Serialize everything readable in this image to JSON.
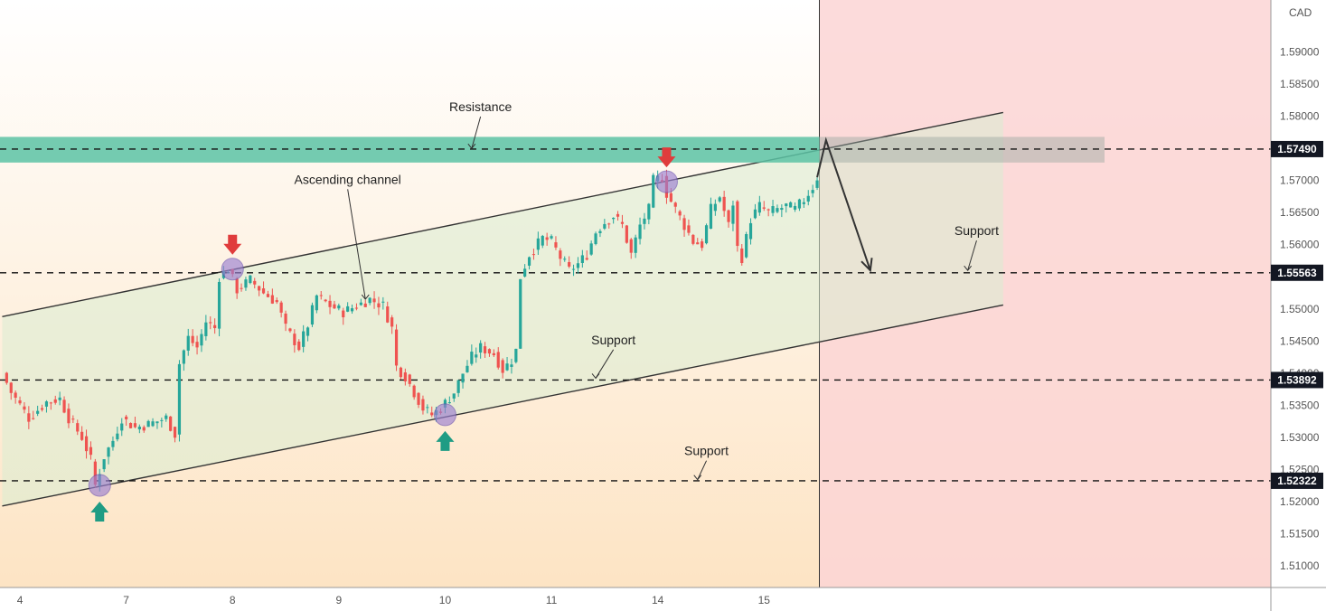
{
  "chart_data": {
    "type": "candlestick",
    "title": "",
    "currency_label": "CAD",
    "colors": {
      "up": "#26a69a",
      "down": "#ef5350",
      "resistance_zone": "#5cc3a4",
      "channel_fill": "#d9ecd2",
      "forecast_bg": "#fbd5d5",
      "price_tag_bg": "#131722",
      "bg_top": "#ffffff",
      "bg_bottom": "#fde4c4",
      "marker_down": "#e03c3c",
      "marker_up": "#1f9c84",
      "pivot_circle": "#9b7fd1"
    },
    "ylim": [
      1.508,
      1.597
    ],
    "y_ticks": [
      "1.59000",
      "1.58500",
      "1.58000",
      "1.57000",
      "1.56500",
      "1.56000",
      "1.55000",
      "1.54500",
      "1.54000",
      "1.53500",
      "1.53000",
      "1.52500",
      "1.52000",
      "1.51500",
      "1.51000"
    ],
    "x_ticks": [
      "4",
      "7",
      "8",
      "9",
      "10",
      "11",
      "14",
      "15"
    ],
    "x_tick_index": [
      4,
      28,
      52,
      76,
      100,
      124,
      148,
      172
    ],
    "n_slots": 226,
    "last_candle_index": 184,
    "forecast_start_index": 185,
    "ohlc_anchors": [
      [
        0,
        1.54
      ],
      [
        2,
        1.537
      ],
      [
        6,
        1.533
      ],
      [
        10,
        1.5355
      ],
      [
        13,
        1.536
      ],
      [
        15,
        1.533
      ],
      [
        18,
        1.53
      ],
      [
        20,
        1.5265
      ],
      [
        21,
        1.5225
      ],
      [
        23,
        1.527
      ],
      [
        25,
        1.5295
      ],
      [
        27,
        1.533
      ],
      [
        30,
        1.5315
      ],
      [
        33,
        1.532
      ],
      [
        37,
        1.533
      ],
      [
        39,
        1.5305
      ],
      [
        40,
        1.5415
      ],
      [
        42,
        1.5455
      ],
      [
        44,
        1.544
      ],
      [
        46,
        1.548
      ],
      [
        48,
        1.547
      ],
      [
        49,
        1.555
      ],
      [
        51,
        1.5562
      ],
      [
        53,
        1.553
      ],
      [
        56,
        1.5545
      ],
      [
        59,
        1.5525
      ],
      [
        62,
        1.551
      ],
      [
        64,
        1.547
      ],
      [
        67,
        1.544
      ],
      [
        69,
        1.5475
      ],
      [
        71,
        1.552
      ],
      [
        74,
        1.5505
      ],
      [
        77,
        1.5495
      ],
      [
        80,
        1.5505
      ],
      [
        83,
        1.5515
      ],
      [
        86,
        1.5505
      ],
      [
        88,
        1.547
      ],
      [
        89,
        1.541
      ],
      [
        91,
        1.5395
      ],
      [
        93,
        1.537
      ],
      [
        95,
        1.5345
      ],
      [
        97,
        1.5335
      ],
      [
        99,
        1.5345
      ],
      [
        102,
        1.537
      ],
      [
        104,
        1.54
      ],
      [
        106,
        1.5425
      ],
      [
        108,
        1.544
      ],
      [
        111,
        1.543
      ],
      [
        113,
        1.5405
      ],
      [
        115,
        1.542
      ],
      [
        116,
        1.5435
      ],
      [
        117,
        1.555
      ],
      [
        119,
        1.5585
      ],
      [
        122,
        1.561
      ],
      [
        124,
        1.5605
      ],
      [
        126,
        1.558
      ],
      [
        128,
        1.556
      ],
      [
        130,
        1.557
      ],
      [
        132,
        1.5585
      ],
      [
        134,
        1.562
      ],
      [
        136,
        1.5635
      ],
      [
        138,
        1.5645
      ],
      [
        140,
        1.563
      ],
      [
        142,
        1.5585
      ],
      [
        144,
        1.563
      ],
      [
        146,
        1.5655
      ],
      [
        147,
        1.57
      ],
      [
        149,
        1.5705
      ],
      [
        150,
        1.568
      ],
      [
        152,
        1.5655
      ],
      [
        154,
        1.563
      ],
      [
        156,
        1.5605
      ],
      [
        158,
        1.56
      ],
      [
        160,
        1.5655
      ],
      [
        162,
        1.5675
      ],
      [
        164,
        1.563
      ],
      [
        165,
        1.5665
      ],
      [
        166,
        1.5595
      ],
      [
        167,
        1.558
      ],
      [
        169,
        1.564
      ],
      [
        171,
        1.566
      ],
      [
        173,
        1.565
      ],
      [
        175,
        1.5655
      ],
      [
        177,
        1.566
      ],
      [
        179,
        1.5655
      ],
      [
        181,
        1.567
      ],
      [
        183,
        1.569
      ],
      [
        184,
        1.5705
      ]
    ],
    "levels": [
      {
        "name": "resistance",
        "value": 1.5749,
        "label": "1.57490"
      },
      {
        "name": "support-upper",
        "value": 1.55563,
        "label": "1.55563"
      },
      {
        "name": "support-mid",
        "value": 1.53892,
        "label": "1.53892"
      },
      {
        "name": "support-lower",
        "value": 1.52322,
        "label": "1.52322"
      }
    ],
    "resistance_zone": [
      1.5728,
      1.5768
    ],
    "channel": {
      "upper": [
        [
          0,
          1.5488
        ],
        [
          226,
          1.5806
        ]
      ],
      "lower": [
        [
          0,
          1.5193
        ],
        [
          226,
          1.5506
        ]
      ]
    },
    "forecast_path": [
      [
        184,
        1.5705
      ],
      [
        186,
        1.5763
      ],
      [
        196,
        1.556
      ]
    ],
    "pivots": [
      {
        "index": 22,
        "value": 1.5225,
        "marker": "up"
      },
      {
        "index": 52,
        "value": 1.5562,
        "marker": "down"
      },
      {
        "index": 100,
        "value": 1.5335,
        "marker": "up"
      },
      {
        "index": 150,
        "value": 1.5698,
        "marker": "down"
      }
    ],
    "annotations": [
      {
        "text": "Resistance",
        "at_index": 108,
        "at_value": 1.5808,
        "arrow_to": [
          106,
          1.575
        ]
      },
      {
        "text": "Ascending channel",
        "at_index": 78,
        "at_value": 1.5695,
        "arrow_to": [
          82,
          1.5515
        ]
      },
      {
        "text": "Support",
        "at_index": 220,
        "at_value": 1.5615,
        "arrow_to": [
          218,
          1.556
        ]
      },
      {
        "text": "Support",
        "at_index": 138,
        "at_value": 1.5445,
        "arrow_to": [
          134,
          1.5392
        ]
      },
      {
        "text": "Support",
        "at_index": 159,
        "at_value": 1.5272,
        "arrow_to": [
          157,
          1.5234
        ]
      }
    ]
  }
}
